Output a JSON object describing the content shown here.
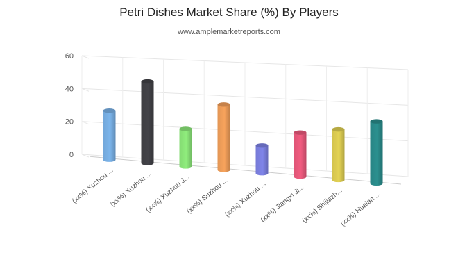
{
  "title": "Petri Dishes Market Share (%) By Players",
  "subtitle": "www.amplemarketreports.com",
  "chart_data": {
    "type": "bar",
    "title": "Petri Dishes Market Share (%) By Players",
    "subtitle": "www.amplemarketreports.com",
    "xlabel": "",
    "ylabel": "",
    "ylim": [
      0,
      60
    ],
    "yticks": [
      "0",
      "20",
      "40",
      "60"
    ],
    "grid": true,
    "legend": "none",
    "categories": [
      "(xx%) Xuzhou ...",
      "(xx%) Xuzhou ...",
      "(xx%) Xuzhou J...",
      "(xx%) Suzhou ...",
      "(xx%) Xuzhou ...",
      "(xx%) Jiangxi Ji...",
      "(xx%) Shijiazh...",
      "(xx%) Huaian ..."
    ],
    "values": [
      30,
      50,
      23,
      40,
      17,
      27,
      31,
      38
    ],
    "colors": [
      "#7cb5ec",
      "#434348",
      "#90ed7d",
      "#f7a35c",
      "#8085e9",
      "#f15c80",
      "#e4d354",
      "#2b908f"
    ]
  }
}
